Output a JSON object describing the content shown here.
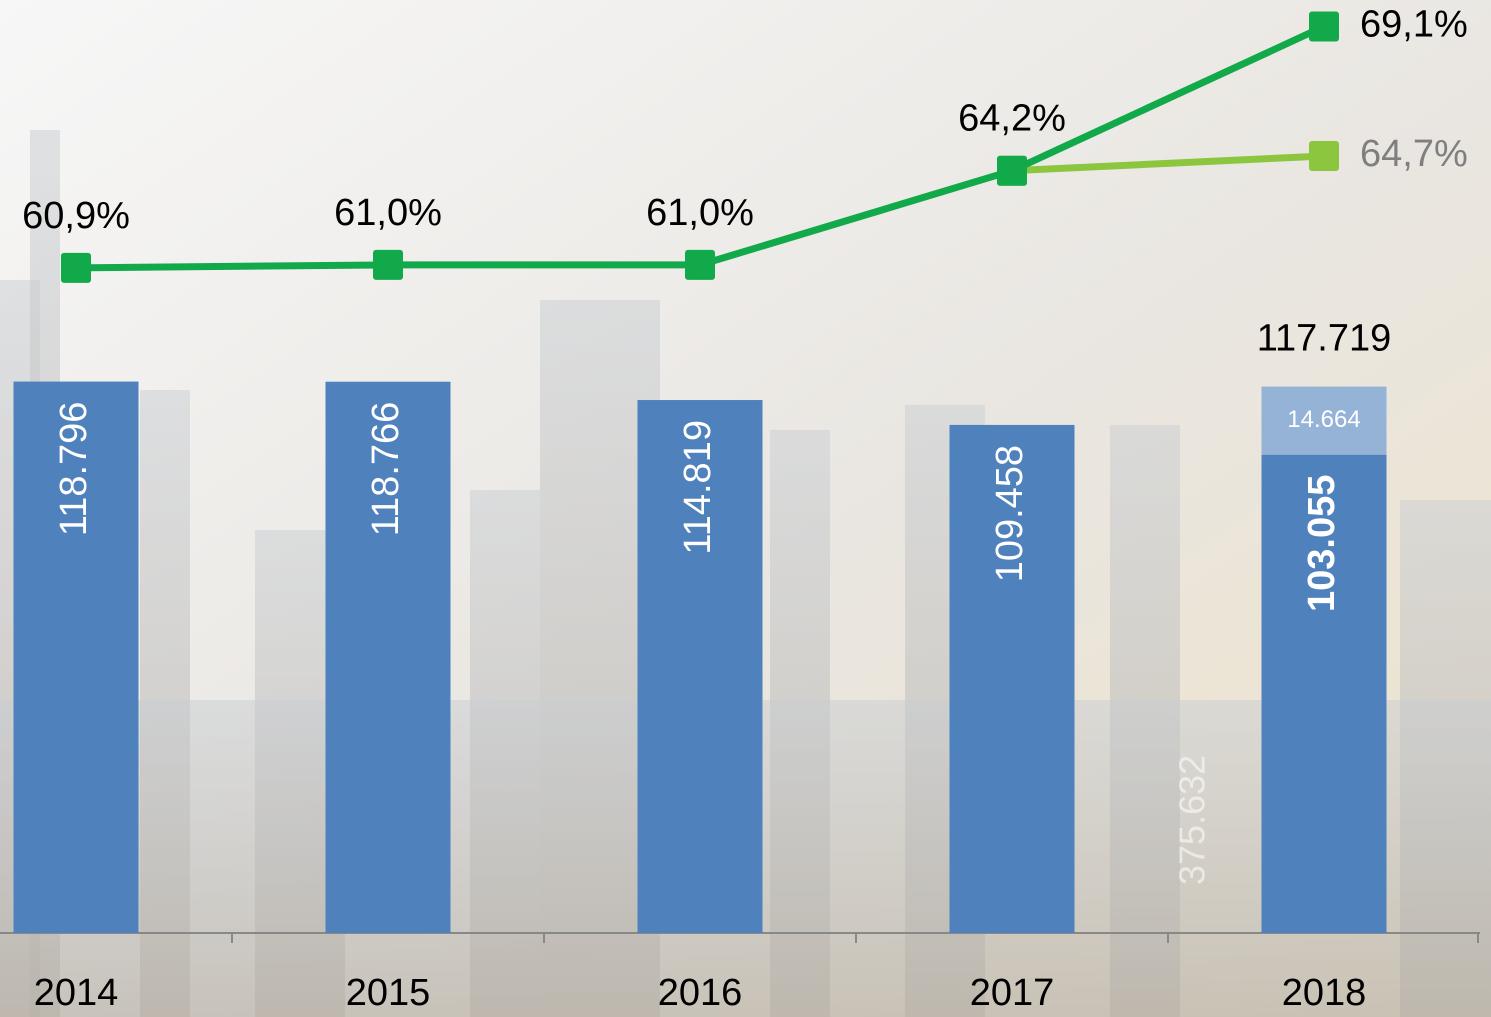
{
  "chart_data": {
    "type": "combo",
    "categories": [
      "2014",
      "2015",
      "2016",
      "2017",
      "2018"
    ],
    "series": [
      {
        "type": "bar",
        "color": "#4f81bd",
        "label_color": "#ffffff",
        "values": [
          118796,
          118766,
          114819,
          109458,
          103055
        ],
        "value_labels": [
          "118.796",
          "118.766",
          "114.819",
          "109.458",
          "103.055"
        ],
        "label_bold": [
          false,
          false,
          false,
          false,
          true
        ]
      },
      {
        "type": "bar",
        "stacked": true,
        "color": "#95b3d7",
        "label_color": "#ffffff",
        "values": [
          null,
          null,
          null,
          null,
          14664
        ],
        "value_labels": [
          null,
          null,
          null,
          null,
          "14.664"
        ]
      },
      {
        "type": "line",
        "axis": "y2",
        "color": "#8cc63f",
        "label_color": "#7f7f7f",
        "values": [
          null,
          null,
          null,
          64.2,
          64.7
        ],
        "value_labels": [
          null,
          null,
          null,
          null,
          "64,7%"
        ]
      },
      {
        "type": "line",
        "axis": "y2",
        "color": "#12a94a",
        "label_color": "#000000",
        "values": [
          60.9,
          61.0,
          61.0,
          64.2,
          69.1
        ],
        "value_labels": [
          "60,9%",
          "61,0%",
          "61,0%",
          "64,2%",
          "69,1%"
        ]
      }
    ],
    "total_label": "117.719",
    "annotation": "375.632",
    "ylim": [
      0,
      201000
    ],
    "y2lim": [
      38.3,
      70
    ]
  }
}
